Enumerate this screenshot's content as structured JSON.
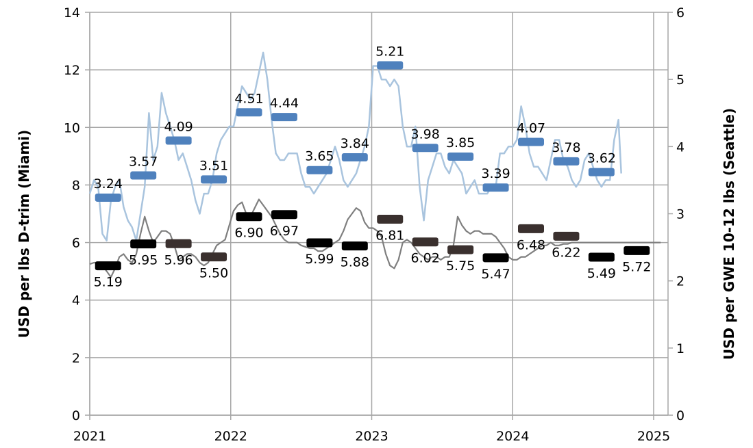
{
  "chart_data": {
    "type": "line",
    "x_ticks": [
      "2021",
      "2022",
      "2023",
      "2024",
      "2025"
    ],
    "y_left": {
      "label": "USD per lbs D-trim (Miami)",
      "lim": [
        0,
        14
      ],
      "ticks": [
        "0",
        "2",
        "4",
        "6",
        "8",
        "10",
        "12",
        "14"
      ]
    },
    "y_right": {
      "label": "USD per GWE 10-12 lbs (Seattle)",
      "lim": [
        0,
        6
      ],
      "ticks": [
        "0",
        "1",
        "2",
        "3",
        "4",
        "5",
        "6"
      ]
    },
    "grid": true,
    "colors": {
      "seattle_line": "#a9c4de",
      "seattle_bar": "#4f81bd",
      "miami_line": "#7f7f7f",
      "miami_bar_dark": "#3a302e",
      "miami_bar_black": "#000000",
      "grid": "#a6a6a6"
    },
    "series": [
      {
        "axis": "right",
        "x": [
          2021.0,
          2021.03,
          2021.06,
          2021.09,
          2021.12,
          2021.15,
          2021.18,
          2021.21,
          2021.24,
          2021.27,
          2021.3,
          2021.33,
          2021.36,
          2021.39,
          2021.42,
          2021.45,
          2021.48,
          2021.51,
          2021.54,
          2021.57,
          2021.6,
          2021.63,
          2021.66,
          2021.69,
          2021.72,
          2021.75,
          2021.78,
          2021.81,
          2021.84,
          2021.87,
          2021.9,
          2021.93,
          2021.96,
          2021.99,
          2022.02,
          2022.05,
          2022.08,
          2022.11,
          2022.14,
          2022.17,
          2022.2,
          2022.23,
          2022.26,
          2022.29,
          2022.32,
          2022.35,
          2022.38,
          2022.41,
          2022.44,
          2022.47,
          2022.5,
          2022.53,
          2022.56,
          2022.59,
          2022.62,
          2022.65,
          2022.68,
          2022.71,
          2022.74,
          2022.77,
          2022.8,
          2022.83,
          2022.86,
          2022.89,
          2022.92,
          2022.95,
          2022.98,
          2023.01,
          2023.04,
          2023.07,
          2023.1,
          2023.13,
          2023.16,
          2023.19,
          2023.22,
          2023.25,
          2023.28,
          2023.31,
          2023.34,
          2023.37,
          2023.4,
          2023.43,
          2023.46,
          2023.49,
          2023.52,
          2023.55,
          2023.58,
          2023.61,
          2023.64,
          2023.67,
          2023.7,
          2023.73,
          2023.76,
          2023.79,
          2023.82,
          2023.85,
          2023.88,
          2023.91,
          2023.94,
          2023.97,
          2024.0,
          2024.03,
          2024.06,
          2024.09,
          2024.12,
          2024.15,
          2024.18,
          2024.21,
          2024.24,
          2024.27,
          2024.3,
          2024.33,
          2024.36,
          2024.39,
          2024.42,
          2024.45,
          2024.48,
          2024.51,
          2024.54,
          2024.57,
          2024.6,
          2024.63,
          2024.66,
          2024.69,
          2024.72,
          2024.75,
          2024.77
        ],
        "y": [
          3.3,
          3.5,
          3.4,
          2.7,
          2.6,
          3.2,
          3.4,
          3.5,
          3.1,
          2.9,
          2.8,
          2.6,
          3.0,
          3.4,
          4.5,
          3.8,
          4.0,
          4.8,
          4.5,
          4.3,
          4.1,
          3.8,
          3.9,
          3.7,
          3.5,
          3.2,
          3.0,
          3.3,
          3.3,
          3.5,
          3.9,
          4.1,
          4.2,
          4.3,
          4.3,
          4.6,
          4.9,
          4.8,
          4.7,
          4.8,
          5.1,
          5.4,
          5.0,
          4.4,
          3.9,
          3.8,
          3.8,
          3.9,
          3.9,
          3.9,
          3.6,
          3.4,
          3.4,
          3.3,
          3.4,
          3.5,
          3.6,
          3.8,
          4.0,
          3.8,
          3.5,
          3.4,
          3.5,
          3.6,
          3.8,
          4.0,
          4.3,
          5.2,
          5.2,
          5.0,
          5.0,
          4.9,
          5.0,
          4.9,
          4.3,
          4.0,
          4.0,
          4.3,
          3.4,
          2.9,
          3.5,
          3.7,
          3.9,
          3.9,
          3.7,
          3.6,
          3.8,
          3.7,
          3.6,
          3.3,
          3.4,
          3.5,
          3.3,
          3.3,
          3.3,
          3.4,
          3.4,
          3.9,
          3.9,
          4.0,
          4.0,
          4.1,
          4.6,
          4.3,
          3.9,
          3.7,
          3.7,
          3.6,
          3.5,
          3.8,
          4.1,
          4.1,
          3.8,
          3.7,
          3.5,
          3.4,
          3.5,
          3.8,
          3.9,
          3.7,
          3.5,
          3.4,
          3.5,
          3.5,
          4.1,
          4.4,
          3.6
        ]
      },
      {
        "axis": "left",
        "x": [
          2021.0,
          2021.03,
          2021.06,
          2021.09,
          2021.12,
          2021.15,
          2021.18,
          2021.21,
          2021.24,
          2021.27,
          2021.3,
          2021.33,
          2021.36,
          2021.39,
          2021.42,
          2021.45,
          2021.48,
          2021.51,
          2021.54,
          2021.57,
          2021.6,
          2021.63,
          2021.66,
          2021.69,
          2021.72,
          2021.75,
          2021.78,
          2021.81,
          2021.84,
          2021.87,
          2021.9,
          2021.93,
          2021.96,
          2021.99,
          2022.02,
          2022.05,
          2022.08,
          2022.11,
          2022.14,
          2022.17,
          2022.2,
          2022.23,
          2022.26,
          2022.29,
          2022.32,
          2022.35,
          2022.38,
          2022.41,
          2022.44,
          2022.47,
          2022.5,
          2022.53,
          2022.56,
          2022.59,
          2022.62,
          2022.65,
          2022.68,
          2022.71,
          2022.74,
          2022.77,
          2022.8,
          2022.83,
          2022.86,
          2022.89,
          2022.92,
          2022.95,
          2022.98,
          2023.01,
          2023.04,
          2023.07,
          2023.1,
          2023.13,
          2023.16,
          2023.19,
          2023.22,
          2023.25,
          2023.28,
          2023.31,
          2023.34,
          2023.37,
          2023.4,
          2023.43,
          2023.46,
          2023.49,
          2023.52,
          2023.55,
          2023.58,
          2023.61,
          2023.64,
          2023.67,
          2023.7,
          2023.73,
          2023.76,
          2023.79,
          2023.82,
          2023.85,
          2023.88,
          2023.91,
          2023.94,
          2023.97,
          2024.0,
          2024.03,
          2024.06,
          2024.09,
          2024.12,
          2024.15,
          2024.18,
          2024.21,
          2024.24,
          2024.27,
          2024.3,
          2024.33,
          2024.36,
          2024.39,
          2024.42,
          2024.45,
          2024.48,
          2024.51,
          2024.54,
          2024.57,
          2024.6,
          2024.63,
          2024.66,
          2024.69,
          2024.72,
          2024.75,
          2024.78,
          2024.81,
          2024.84,
          2024.87,
          2024.9,
          2024.93,
          2024.96,
          2024.99,
          2025.02,
          2025.05
        ],
        "y": [
          5.25,
          5.3,
          5.3,
          5.2,
          5.0,
          4.8,
          5.1,
          5.5,
          5.6,
          5.4,
          5.3,
          5.6,
          6.3,
          6.9,
          6.4,
          6.0,
          6.2,
          6.4,
          6.4,
          6.3,
          5.9,
          5.4,
          5.5,
          5.6,
          5.6,
          5.5,
          5.3,
          5.2,
          5.3,
          5.6,
          5.9,
          6.0,
          6.1,
          6.6,
          7.1,
          7.3,
          7.4,
          7.0,
          6.9,
          7.2,
          7.5,
          7.3,
          7.1,
          6.9,
          6.6,
          6.3,
          6.1,
          6.0,
          6.0,
          6.0,
          5.9,
          5.85,
          5.8,
          5.8,
          5.7,
          5.7,
          5.8,
          5.9,
          6.0,
          6.1,
          6.4,
          6.8,
          7.0,
          7.2,
          7.1,
          6.7,
          6.5,
          6.5,
          6.4,
          6.2,
          5.6,
          5.2,
          5.1,
          5.4,
          6.0,
          6.1,
          6.0,
          5.8,
          5.6,
          5.5,
          5.4,
          5.5,
          5.5,
          5.4,
          5.5,
          5.5,
          5.9,
          6.9,
          6.6,
          6.4,
          6.3,
          6.4,
          6.4,
          6.3,
          6.3,
          6.3,
          6.2,
          6.0,
          5.8,
          5.5,
          5.4,
          5.4,
          5.5,
          5.5,
          5.6,
          5.7,
          5.8,
          5.9,
          5.9,
          6.0,
          5.9,
          5.9,
          5.95,
          5.95,
          6.0,
          6.0,
          6.0,
          6.0,
          6.0,
          6.0,
          6.0,
          6.0,
          6.0,
          6.0,
          6.0,
          6.0,
          6.0,
          6.0,
          6.0,
          6.0,
          6.0,
          6.0,
          6.0,
          6.0,
          6.0,
          6.0
        ]
      }
    ],
    "seattle_markers": [
      {
        "x": 2021.13,
        "value": 3.24,
        "label": "3.24"
      },
      {
        "x": 2021.38,
        "value": 3.57,
        "label": "3.57"
      },
      {
        "x": 2021.63,
        "value": 4.09,
        "label": "4.09"
      },
      {
        "x": 2021.88,
        "value": 3.51,
        "label": "3.51"
      },
      {
        "x": 2022.13,
        "value": 4.51,
        "label": "4.51"
      },
      {
        "x": 2022.38,
        "value": 4.44,
        "label": "4.44"
      },
      {
        "x": 2022.63,
        "value": 3.65,
        "label": "3.65"
      },
      {
        "x": 2022.88,
        "value": 3.84,
        "label": "3.84"
      },
      {
        "x": 2023.13,
        "value": 5.21,
        "label": "5.21"
      },
      {
        "x": 2023.38,
        "value": 3.98,
        "label": "3.98"
      },
      {
        "x": 2023.63,
        "value": 3.85,
        "label": "3.85"
      },
      {
        "x": 2023.88,
        "value": 3.39,
        "label": "3.39"
      },
      {
        "x": 2024.13,
        "value": 4.07,
        "label": "4.07"
      },
      {
        "x": 2024.38,
        "value": 3.78,
        "label": "3.78"
      },
      {
        "x": 2024.63,
        "value": 3.62,
        "label": "3.62"
      }
    ],
    "miami_markers": [
      {
        "x": 2021.13,
        "value": 5.19,
        "label": "5.19",
        "color": "black"
      },
      {
        "x": 2021.38,
        "value": 5.95,
        "label": "5.95",
        "color": "black"
      },
      {
        "x": 2021.63,
        "value": 5.96,
        "label": "5.96",
        "color": "dark"
      },
      {
        "x": 2021.88,
        "value": 5.5,
        "label": "5.50",
        "color": "dark"
      },
      {
        "x": 2022.13,
        "value": 6.9,
        "label": "6.90",
        "color": "black"
      },
      {
        "x": 2022.38,
        "value": 6.97,
        "label": "6.97",
        "color": "black"
      },
      {
        "x": 2022.63,
        "value": 5.99,
        "label": "5.99",
        "color": "black"
      },
      {
        "x": 2022.88,
        "value": 5.88,
        "label": "5.88",
        "color": "black"
      },
      {
        "x": 2023.13,
        "value": 6.81,
        "label": "6.81",
        "color": "dark"
      },
      {
        "x": 2023.38,
        "value": 6.02,
        "label": "6.02",
        "color": "dark"
      },
      {
        "x": 2023.63,
        "value": 5.75,
        "label": "5.75",
        "color": "dark"
      },
      {
        "x": 2023.88,
        "value": 5.47,
        "label": "5.47",
        "color": "black"
      },
      {
        "x": 2024.13,
        "value": 6.48,
        "label": "6.48",
        "color": "dark"
      },
      {
        "x": 2024.38,
        "value": 6.22,
        "label": "6.22",
        "color": "dark"
      },
      {
        "x": 2024.63,
        "value": 5.49,
        "label": "5.49",
        "color": "black"
      },
      {
        "x": 2024.88,
        "value": 5.72,
        "label": "5.72",
        "color": "black"
      }
    ]
  }
}
